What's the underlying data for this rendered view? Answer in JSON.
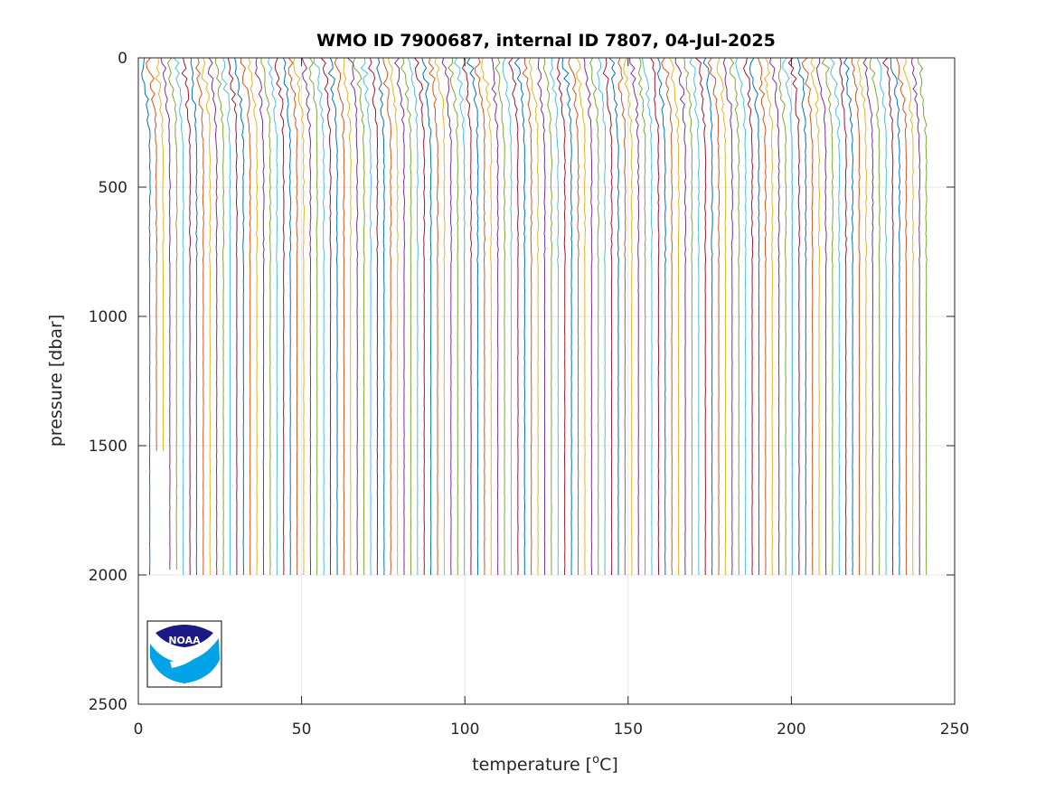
{
  "chart_data": {
    "type": "line",
    "title": "WMO ID 7900687, internal ID 7807, 04-Jul-2025",
    "xlabel_prefix": "temperature [",
    "xlabel_sup": "o",
    "xlabel_suffix": "C]",
    "ylabel": "pressure [dbar]",
    "xlim": [
      0,
      250
    ],
    "ylim": [
      0,
      2500
    ],
    "y_reversed": true,
    "grid": true,
    "xticks": [
      "0",
      "50",
      "100",
      "150",
      "200",
      "250"
    ],
    "yticks": [
      "0",
      "500",
      "1000",
      "1500",
      "2000",
      "2500"
    ],
    "profile_count": 117,
    "profile_start_x": 3.5,
    "profile_spacing_x": 2.05,
    "profile_max_pressure": 2000,
    "series_colors": [
      "#0072BD",
      "#D95319",
      "#EDB120",
      "#7E2F8E",
      "#77AC30",
      "#4DBEEE",
      "#A2142F"
    ],
    "logo": {
      "text": "NOAA",
      "position": "bottom-left"
    }
  }
}
